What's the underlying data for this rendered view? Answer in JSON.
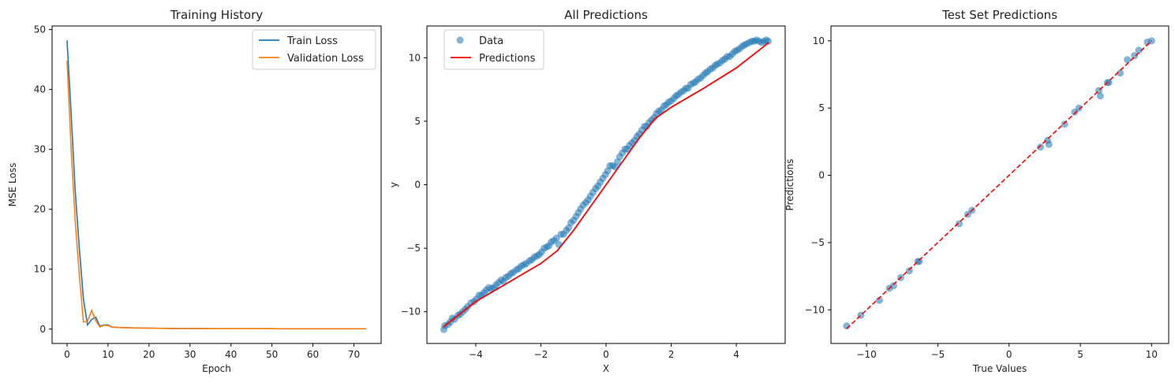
{
  "chart_data": [
    {
      "type": "line",
      "title": "Training History",
      "xlabel": "Epoch",
      "ylabel": "MSE Loss",
      "xlim": [
        -3.65,
        76.65
      ],
      "ylim": [
        -2.4,
        50.6
      ],
      "xticks": [
        0,
        10,
        20,
        30,
        40,
        50,
        60,
        70
      ],
      "yticks": [
        0,
        10,
        20,
        30,
        40,
        50
      ],
      "grid": false,
      "legend_position": "top-right",
      "colors": {
        "Train Loss": "#1f77b4",
        "Validation Loss": "#ff7f0e"
      },
      "series": [
        {
          "name": "Train Loss",
          "x": [
            0,
            1,
            2,
            3,
            4,
            5,
            6,
            7,
            8,
            9,
            10,
            11,
            12,
            13,
            14,
            15,
            16,
            17,
            18,
            19,
            20,
            21,
            22,
            23,
            24,
            25,
            26,
            27,
            28,
            29,
            30,
            31,
            32,
            33,
            34,
            35,
            36,
            37,
            38,
            39,
            40,
            41,
            42,
            43,
            44,
            45,
            46,
            47,
            48,
            49,
            50,
            51,
            52,
            53,
            54,
            55,
            56,
            57,
            58,
            59,
            60,
            61,
            62,
            63,
            64,
            65,
            66,
            67,
            68,
            69,
            70,
            71,
            72,
            73
          ],
          "y": [
            48.2,
            36.0,
            23.0,
            13.5,
            5.0,
            0.7,
            1.6,
            2.0,
            0.5,
            0.7,
            0.7,
            0.35,
            0.3,
            0.28,
            0.25,
            0.22,
            0.2,
            0.19,
            0.18,
            0.17,
            0.16,
            0.15,
            0.14,
            0.13,
            0.12,
            0.12,
            0.11,
            0.11,
            0.1,
            0.1,
            0.1,
            0.09,
            0.09,
            0.09,
            0.09,
            0.08,
            0.08,
            0.08,
            0.08,
            0.08,
            0.08,
            0.07,
            0.07,
            0.07,
            0.07,
            0.07,
            0.07,
            0.07,
            0.07,
            0.07,
            0.07,
            0.06,
            0.06,
            0.06,
            0.06,
            0.06,
            0.06,
            0.06,
            0.06,
            0.06,
            0.06,
            0.06,
            0.06,
            0.06,
            0.06,
            0.06,
            0.06,
            0.06,
            0.06,
            0.06,
            0.06,
            0.06,
            0.06,
            0.06
          ]
        },
        {
          "name": "Validation Loss",
          "x": [
            0,
            1,
            2,
            3,
            4,
            5,
            6,
            7,
            8,
            9,
            10,
            11,
            12,
            13,
            14,
            15,
            16,
            17,
            18,
            19,
            20,
            21,
            22,
            23,
            24,
            25,
            26,
            27,
            28,
            29,
            30,
            31,
            32,
            33,
            34,
            35,
            36,
            37,
            38,
            39,
            40,
            41,
            42,
            43,
            44,
            45,
            46,
            47,
            48,
            49,
            50,
            51,
            52,
            53,
            54,
            55,
            56,
            57,
            58,
            59,
            60,
            61,
            62,
            63,
            64,
            65,
            66,
            67,
            68,
            69,
            70,
            71,
            72,
            73
          ],
          "y": [
            44.8,
            30.0,
            18.0,
            9.0,
            1.2,
            1.3,
            3.1,
            1.4,
            0.35,
            0.65,
            0.6,
            0.3,
            0.28,
            0.25,
            0.22,
            0.2,
            0.19,
            0.18,
            0.17,
            0.16,
            0.15,
            0.14,
            0.13,
            0.12,
            0.12,
            0.11,
            0.11,
            0.1,
            0.1,
            0.1,
            0.09,
            0.09,
            0.09,
            0.09,
            0.08,
            0.08,
            0.08,
            0.08,
            0.08,
            0.08,
            0.07,
            0.07,
            0.07,
            0.07,
            0.07,
            0.07,
            0.07,
            0.07,
            0.07,
            0.07,
            0.07,
            0.07,
            0.06,
            0.06,
            0.06,
            0.06,
            0.06,
            0.06,
            0.06,
            0.06,
            0.06,
            0.06,
            0.06,
            0.06,
            0.06,
            0.06,
            0.06,
            0.06,
            0.06,
            0.06,
            0.06,
            0.06,
            0.06,
            0.06
          ]
        }
      ]
    },
    {
      "type": "scatter",
      "title": "All Predictions",
      "xlabel": "X",
      "ylabel": "y",
      "xlim": [
        -5.5,
        5.5
      ],
      "ylim": [
        -12.5,
        12.5
      ],
      "xticks": [
        -4,
        -2,
        0,
        2,
        4
      ],
      "yticks": [
        -10,
        -5,
        0,
        5,
        10
      ],
      "grid": false,
      "legend_position": "top-left",
      "colors": {
        "Data": "#1f77b4",
        "Predictions": "#ff0000"
      },
      "scatter_series": {
        "name": "Data",
        "x": [
          -4.98,
          -4.95,
          -4.85,
          -4.78,
          -4.72,
          -4.65,
          -4.55,
          -4.48,
          -4.4,
          -4.32,
          -4.25,
          -4.15,
          -4.05,
          -3.98,
          -3.9,
          -3.82,
          -3.75,
          -3.68,
          -3.6,
          -3.52,
          -3.45,
          -3.38,
          -3.3,
          -3.22,
          -3.15,
          -3.08,
          -3.0,
          -2.92,
          -2.85,
          -2.75,
          -2.68,
          -2.6,
          -2.52,
          -2.45,
          -2.35,
          -2.28,
          -2.2,
          -2.12,
          -2.05,
          -1.98,
          -1.9,
          -1.82,
          -1.75,
          -1.68,
          -1.6,
          -1.52,
          -1.45,
          -1.38,
          -1.3,
          -1.22,
          -1.15,
          -1.08,
          -1.0,
          -0.92,
          -0.85,
          -0.78,
          -0.7,
          -0.62,
          -0.55,
          -0.48,
          -0.4,
          -0.32,
          -0.25,
          -0.18,
          -0.1,
          -0.02,
          0.05,
          0.12,
          0.2,
          0.28,
          0.35,
          0.42,
          0.5,
          0.58,
          0.65,
          0.72,
          0.8,
          0.88,
          0.95,
          1.02,
          1.1,
          1.18,
          1.25,
          1.32,
          1.4,
          1.48,
          1.55,
          1.62,
          1.7,
          1.78,
          1.85,
          1.92,
          2.0,
          2.08,
          2.15,
          2.22,
          2.3,
          2.38,
          2.45,
          2.52,
          2.6,
          2.68,
          2.75,
          2.82,
          2.9,
          2.98,
          3.05,
          3.12,
          3.2,
          3.28,
          3.35,
          3.42,
          3.5,
          3.58,
          3.65,
          3.72,
          3.8,
          3.88,
          3.95,
          4.02,
          4.1,
          4.18,
          4.25,
          4.32,
          4.4,
          4.48,
          4.55,
          4.62,
          4.7,
          4.78,
          4.85,
          4.92,
          4.98
        ],
        "y": [
          -11.4,
          -11.1,
          -11.0,
          -10.8,
          -10.5,
          -10.6,
          -10.3,
          -10.2,
          -10.0,
          -9.8,
          -9.6,
          -9.3,
          -9.2,
          -9.0,
          -8.7,
          -8.7,
          -8.5,
          -8.3,
          -8.1,
          -8.2,
          -8.1,
          -7.9,
          -7.7,
          -7.5,
          -7.6,
          -7.3,
          -7.2,
          -7.0,
          -6.9,
          -6.7,
          -6.6,
          -6.4,
          -6.3,
          -6.2,
          -6.0,
          -5.9,
          -5.7,
          -5.6,
          -5.5,
          -5.3,
          -5.0,
          -4.9,
          -4.8,
          -4.5,
          -4.4,
          -4.2,
          -4.7,
          -3.9,
          -3.9,
          -3.6,
          -3.4,
          -3.0,
          -2.8,
          -2.5,
          -2.2,
          -1.9,
          -1.6,
          -1.4,
          -1.2,
          -0.9,
          -0.6,
          -0.3,
          -0.1,
          0.2,
          0.5,
          0.8,
          1.1,
          1.5,
          1.5,
          1.4,
          1.8,
          2.2,
          2.5,
          2.8,
          2.8,
          3.1,
          3.3,
          3.5,
          3.8,
          4.0,
          4.3,
          4.6,
          4.6,
          4.9,
          5.1,
          5.3,
          5.6,
          5.8,
          5.9,
          6.2,
          6.3,
          6.5,
          6.6,
          6.8,
          7.0,
          7.1,
          7.3,
          7.4,
          7.6,
          7.6,
          7.9,
          8.0,
          8.1,
          8.3,
          8.4,
          8.6,
          8.8,
          8.9,
          9.1,
          9.2,
          9.4,
          9.5,
          9.6,
          9.8,
          9.9,
          10.1,
          10.1,
          10.3,
          10.5,
          10.6,
          10.7,
          10.9,
          11.0,
          11.1,
          11.2,
          11.3,
          11.3,
          11.4,
          11.3,
          11.2,
          11.3,
          11.4,
          11.3
        ]
      },
      "line_series": {
        "name": "Predictions",
        "x": [
          -5,
          -4,
          -3,
          -2,
          -1.5,
          -1,
          -0.5,
          0,
          0.5,
          1,
          1.5,
          2,
          3,
          4,
          5
        ],
        "y": [
          -11.2,
          -9.2,
          -7.7,
          -6.2,
          -5.2,
          -3.6,
          -1.8,
          0,
          1.8,
          3.6,
          5.2,
          6.1,
          7.6,
          9.2,
          11.2
        ]
      }
    },
    {
      "type": "scatter",
      "title": "Test Set Predictions",
      "xlabel": "True Values",
      "ylabel": "Predictions",
      "xlim": [
        -12.5,
        11.2
      ],
      "ylim": [
        -12.5,
        11.1
      ],
      "xticks": [
        -10,
        -5,
        0,
        5,
        10
      ],
      "yticks": [
        -10,
        -5,
        0,
        5,
        10
      ],
      "grid": false,
      "colors": {
        "points": "#1f77b4",
        "reference": "#ff0000"
      },
      "points": {
        "x": [
          -11.4,
          -10.4,
          -9.1,
          -8.4,
          -8.1,
          -7.6,
          -7.0,
          -6.4,
          -6.3,
          -3.5,
          -2.9,
          -2.6,
          2.2,
          2.7,
          2.8,
          3.9,
          4.6,
          4.9,
          6.3,
          6.4,
          6.9,
          7.0,
          7.8,
          8.3,
          8.8,
          9.1,
          9.7,
          10.0
        ],
        "y": [
          -11.2,
          -10.4,
          -9.3,
          -8.4,
          -8.2,
          -7.6,
          -7.1,
          -6.4,
          -6.4,
          -3.6,
          -2.9,
          -2.6,
          2.1,
          2.6,
          2.3,
          3.8,
          4.7,
          5.0,
          6.3,
          5.9,
          6.9,
          6.9,
          7.6,
          8.6,
          8.9,
          9.3,
          9.9,
          10.0
        ]
      },
      "reference_line": {
        "x": [
          -11.4,
          10.0
        ],
        "y": [
          -11.4,
          10.0
        ]
      }
    }
  ]
}
